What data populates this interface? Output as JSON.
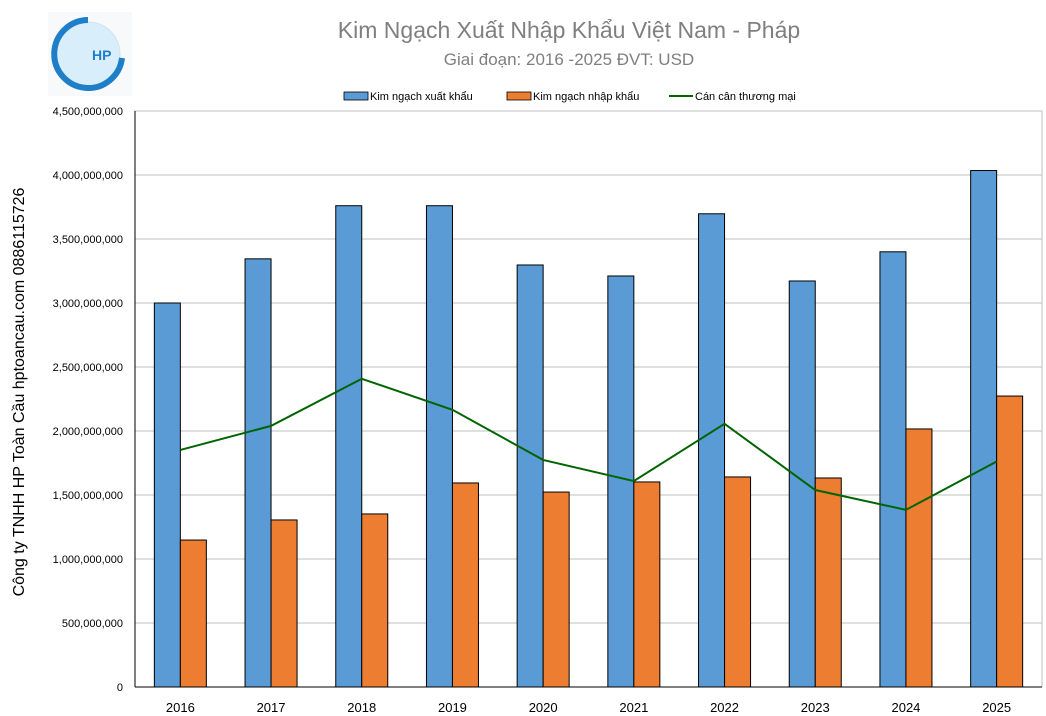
{
  "chart_data": {
    "type": "bar",
    "title": "Kim Ngạch Xuất Nhập Khẩu Việt Nam - Pháp",
    "subtitle": "Giai đoạn: 2016 -2025  ĐVT: USD",
    "side_label": "Công ty TNHH HP Toàn Cầu hptoancau.com 0886115726",
    "logo_text": "HP",
    "categories": [
      "2016",
      "2017",
      "2018",
      "2019",
      "2020",
      "2021",
      "2022",
      "2023",
      "2024",
      "2025"
    ],
    "series": [
      {
        "name": "Kim ngạch xuất khẩu",
        "type": "bar",
        "color": "#5B9BD5",
        "values": [
          3000000000,
          3345000000,
          3760000000,
          3760000000,
          3297000000,
          3211000000,
          3697000000,
          3172000000,
          3400000000,
          4035000000
        ]
      },
      {
        "name": "Kim ngạch nhập khẩu",
        "type": "bar",
        "color": "#ED7D31",
        "values": [
          1148000000,
          1305000000,
          1352000000,
          1594000000,
          1523000000,
          1602000000,
          1641000000,
          1633000000,
          2016000000,
          2273000000
        ]
      },
      {
        "name": "Cán cân thương mại",
        "type": "line",
        "color": "#006400",
        "values": [
          1852000000,
          2040000000,
          2408000000,
          2166000000,
          1774000000,
          1609000000,
          2056000000,
          1539000000,
          1384000000,
          1762000000
        ]
      }
    ],
    "yticks": [
      "0",
      "500,000,000",
      "1,000,000,000",
      "1,500,000,000",
      "2,000,000,000",
      "2,500,000,000",
      "3,000,000,000",
      "3,500,000,000",
      "4,000,000,000",
      "4,500,000,000"
    ],
    "ylim": [
      0,
      4500000000
    ],
    "grid": true,
    "legend_position": "top"
  }
}
